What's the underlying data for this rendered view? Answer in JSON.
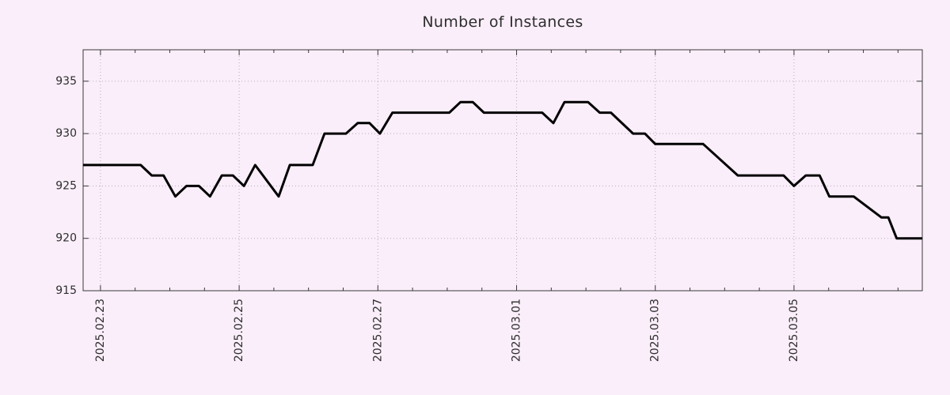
{
  "page": {
    "background_color": "#f9eef9"
  },
  "chart_data": {
    "type": "line",
    "title": "Number of Instances",
    "xlabel": "",
    "ylabel": "",
    "legend": "none",
    "grid": {
      "show": true,
      "style": "dotted",
      "color": "#b7abb7"
    },
    "axis_color": "#3a3a3a",
    "text_color": "#2e2e2e",
    "x_axis": {
      "unit": "days_since_2025.02.23",
      "range": [
        -0.25,
        11.85
      ],
      "minor_tick_step": 0.5,
      "major_ticks": [
        {
          "pos": 0,
          "label": "2025.02.23"
        },
        {
          "pos": 2,
          "label": "2025.02.25"
        },
        {
          "pos": 4,
          "label": "2025.02.27"
        },
        {
          "pos": 6,
          "label": "2025.03.01"
        },
        {
          "pos": 8,
          "label": "2025.03.03"
        },
        {
          "pos": 10,
          "label": "2025.03.05"
        }
      ],
      "label_rotation_deg": -90
    },
    "y_axis": {
      "range": [
        915,
        938
      ],
      "major_ticks": [
        915,
        920,
        925,
        930,
        935
      ]
    },
    "series": [
      {
        "name": "instances",
        "color": "#000000",
        "line_width": 3,
        "points": [
          [
            -0.25,
            927
          ],
          [
            0.58,
            927
          ],
          [
            0.74,
            926
          ],
          [
            0.91,
            926
          ],
          [
            1.08,
            924
          ],
          [
            1.24,
            925
          ],
          [
            1.42,
            925
          ],
          [
            1.58,
            924
          ],
          [
            1.75,
            926
          ],
          [
            1.91,
            926
          ],
          [
            2.07,
            925
          ],
          [
            2.23,
            927
          ],
          [
            2.57,
            924
          ],
          [
            2.73,
            927
          ],
          [
            3.06,
            927
          ],
          [
            3.23,
            930
          ],
          [
            3.54,
            930
          ],
          [
            3.71,
            931
          ],
          [
            3.88,
            931
          ],
          [
            4.03,
            930
          ],
          [
            4.21,
            932
          ],
          [
            5.03,
            932
          ],
          [
            5.19,
            933
          ],
          [
            5.37,
            933
          ],
          [
            5.53,
            932
          ],
          [
            6.37,
            932
          ],
          [
            6.53,
            931
          ],
          [
            6.69,
            933
          ],
          [
            7.03,
            933
          ],
          [
            7.2,
            932
          ],
          [
            7.36,
            932
          ],
          [
            7.68,
            930
          ],
          [
            7.85,
            930
          ],
          [
            8.0,
            929
          ],
          [
            8.69,
            929
          ],
          [
            9.19,
            926
          ],
          [
            9.85,
            926
          ],
          [
            10.0,
            925
          ],
          [
            10.17,
            926
          ],
          [
            10.37,
            926
          ],
          [
            10.51,
            924
          ],
          [
            10.86,
            924
          ],
          [
            11.26,
            922
          ],
          [
            11.36,
            922
          ],
          [
            11.48,
            920
          ],
          [
            11.85,
            920
          ]
        ]
      }
    ]
  }
}
